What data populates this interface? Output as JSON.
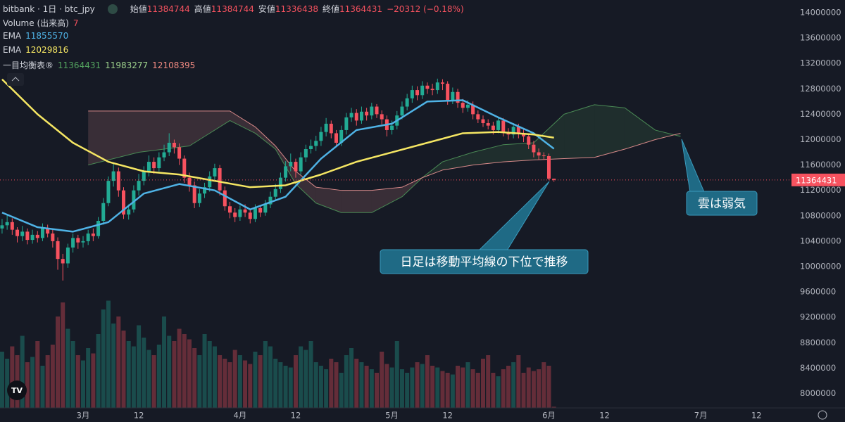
{
  "header": {
    "title": "bitbank · 1日 · btc_jpy",
    "open_label": "始値",
    "high_label": "高値",
    "low_label": "安値",
    "close_label": "終値",
    "change": "−20312 (−0.18%)"
  },
  "chart_data": {
    "type": "candlestick",
    "up_color": "#22ab94",
    "down_color": "#f7525f",
    "x": [
      13,
      14,
      15,
      16,
      17,
      18,
      19,
      20,
      21,
      22,
      23,
      24,
      25,
      26,
      27,
      28,
      29,
      30,
      31,
      32,
      33,
      34,
      35,
      36,
      37,
      38,
      39,
      40,
      41,
      42,
      43,
      44,
      45,
      46,
      47,
      48,
      49,
      50,
      51,
      52,
      53,
      54,
      55,
      56,
      57,
      58,
      59,
      60,
      61,
      62,
      63,
      64,
      65,
      66,
      67,
      68,
      69,
      70,
      71,
      72,
      73,
      74,
      75,
      76,
      77,
      78,
      79,
      80,
      81,
      82,
      83,
      84,
      85,
      86,
      87,
      88,
      89,
      90,
      91,
      92,
      93,
      94,
      95,
      96,
      97,
      98,
      99,
      100,
      101,
      102,
      103,
      104,
      105,
      106,
      107,
      108,
      109,
      110,
      111,
      112,
      113,
      114,
      115,
      116,
      117,
      118,
      119,
      120,
      121,
      122
    ],
    "ohlc": [
      [
        10600000,
        10750000,
        10520000,
        10650000
      ],
      [
        10650000,
        10820000,
        10580000,
        10700000
      ],
      [
        10700000,
        10760000,
        10500000,
        10580000
      ],
      [
        10580000,
        10620000,
        10380000,
        10480000
      ],
      [
        10480000,
        10640000,
        10400000,
        10550000
      ],
      [
        10550000,
        10600000,
        10350000,
        10420000
      ],
      [
        10420000,
        10580000,
        10360000,
        10500000
      ],
      [
        10500000,
        10560000,
        10380000,
        10450000
      ],
      [
        10450000,
        10680000,
        10400000,
        10600000
      ],
      [
        10600000,
        10660000,
        10460000,
        10520000
      ],
      [
        10520000,
        10580000,
        10300000,
        10400000
      ],
      [
        10400000,
        10460000,
        9950000,
        10120000
      ],
      [
        10120000,
        10200000,
        9780000,
        10050000
      ],
      [
        10050000,
        10360000,
        9980000,
        10300000
      ],
      [
        10300000,
        10520000,
        10220000,
        10450000
      ],
      [
        10450000,
        10500000,
        10280000,
        10380000
      ],
      [
        10380000,
        10480000,
        10300000,
        10400000
      ],
      [
        10400000,
        10580000,
        10340000,
        10520000
      ],
      [
        10520000,
        10600000,
        10400000,
        10480000
      ],
      [
        10480000,
        10780000,
        10440000,
        10720000
      ],
      [
        10720000,
        11080000,
        10660000,
        11000000
      ],
      [
        11000000,
        11420000,
        10950000,
        11350000
      ],
      [
        11350000,
        11620000,
        11260000,
        11500000
      ],
      [
        11500000,
        11560000,
        11100000,
        11200000
      ],
      [
        11200000,
        11250000,
        10750000,
        10820000
      ],
      [
        10820000,
        10980000,
        10740000,
        10900000
      ],
      [
        10900000,
        11280000,
        10850000,
        11200000
      ],
      [
        11200000,
        11460000,
        11120000,
        11350000
      ],
      [
        11350000,
        11580000,
        11280000,
        11500000
      ],
      [
        11500000,
        11750000,
        11420000,
        11650000
      ],
      [
        11650000,
        11720000,
        11460000,
        11550000
      ],
      [
        11550000,
        11800000,
        11500000,
        11720000
      ],
      [
        11720000,
        11920000,
        11660000,
        11800000
      ],
      [
        11800000,
        12100000,
        11740000,
        11950000
      ],
      [
        11950000,
        12000000,
        11780000,
        11880000
      ],
      [
        11880000,
        11940000,
        11600000,
        11700000
      ],
      [
        11700000,
        11750000,
        11320000,
        11400000
      ],
      [
        11400000,
        11480000,
        11180000,
        11280000
      ],
      [
        11280000,
        11340000,
        10920000,
        11000000
      ],
      [
        11000000,
        11220000,
        10940000,
        11150000
      ],
      [
        11150000,
        11320000,
        11080000,
        11250000
      ],
      [
        11250000,
        11500000,
        11180000,
        11420000
      ],
      [
        11420000,
        11620000,
        11360000,
        11550000
      ],
      [
        11550000,
        11600000,
        11120000,
        11200000
      ],
      [
        11200000,
        11260000,
        10880000,
        10950000
      ],
      [
        10950000,
        11020000,
        10760000,
        10850000
      ],
      [
        10850000,
        10920000,
        10700000,
        10780000
      ],
      [
        10780000,
        10960000,
        10720000,
        10900000
      ],
      [
        10900000,
        10980000,
        10780000,
        10850000
      ],
      [
        10850000,
        10900000,
        10680000,
        10750000
      ],
      [
        10750000,
        10980000,
        10700000,
        10920000
      ],
      [
        10920000,
        10960000,
        10780000,
        10850000
      ],
      [
        10850000,
        11050000,
        10800000,
        10980000
      ],
      [
        10980000,
        11180000,
        10920000,
        11100000
      ],
      [
        11100000,
        11300000,
        11040000,
        11220000
      ],
      [
        11220000,
        11480000,
        11160000,
        11400000
      ],
      [
        11400000,
        11660000,
        11340000,
        11580000
      ],
      [
        11580000,
        11780000,
        11500000,
        11650000
      ],
      [
        11650000,
        11700000,
        11400000,
        11500000
      ],
      [
        11500000,
        11800000,
        11450000,
        11720000
      ],
      [
        11720000,
        11920000,
        11650000,
        11850000
      ],
      [
        11850000,
        12000000,
        11780000,
        11900000
      ],
      [
        11900000,
        12060000,
        11820000,
        11980000
      ],
      [
        11980000,
        12200000,
        11900000,
        12120000
      ],
      [
        12120000,
        12340000,
        12050000,
        12250000
      ],
      [
        12250000,
        12300000,
        12020000,
        12100000
      ],
      [
        12100000,
        12150000,
        11880000,
        11950000
      ],
      [
        11950000,
        12220000,
        11900000,
        12150000
      ],
      [
        12150000,
        12420000,
        12080000,
        12350000
      ],
      [
        12350000,
        12500000,
        12280000,
        12420000
      ],
      [
        12420000,
        12480000,
        12220000,
        12300000
      ],
      [
        12300000,
        12520000,
        12250000,
        12440000
      ],
      [
        12440000,
        12500000,
        12300000,
        12380000
      ],
      [
        12380000,
        12580000,
        12320000,
        12520000
      ],
      [
        12520000,
        12560000,
        12340000,
        12400000
      ],
      [
        12400000,
        12460000,
        12240000,
        12320000
      ],
      [
        12320000,
        12380000,
        12050000,
        12150000
      ],
      [
        12150000,
        12300000,
        12080000,
        12220000
      ],
      [
        12220000,
        12450000,
        12160000,
        12380000
      ],
      [
        12380000,
        12600000,
        12320000,
        12520000
      ],
      [
        12520000,
        12720000,
        12460000,
        12650000
      ],
      [
        12650000,
        12850000,
        12580000,
        12780000
      ],
      [
        12780000,
        12840000,
        12620000,
        12700000
      ],
      [
        12700000,
        12920000,
        12640000,
        12850000
      ],
      [
        12850000,
        12900000,
        12720000,
        12800000
      ],
      [
        12800000,
        12880000,
        12700000,
        12780000
      ],
      [
        12780000,
        12960000,
        12720000,
        12900000
      ],
      [
        12900000,
        12950000,
        12780000,
        12880000
      ],
      [
        12880000,
        12920000,
        12550000,
        12620000
      ],
      [
        12620000,
        12820000,
        12560000,
        12750000
      ],
      [
        12750000,
        12800000,
        12500000,
        12580000
      ],
      [
        12580000,
        12640000,
        12420000,
        12500000
      ],
      [
        12500000,
        12620000,
        12440000,
        12550000
      ],
      [
        12550000,
        12600000,
        12320000,
        12400000
      ],
      [
        12400000,
        12460000,
        12260000,
        12320000
      ],
      [
        12320000,
        12380000,
        12200000,
        12260000
      ],
      [
        12260000,
        12320000,
        12160000,
        12220000
      ],
      [
        12220000,
        12280000,
        12080000,
        12150000
      ],
      [
        12150000,
        12360000,
        12100000,
        12300000
      ],
      [
        12300000,
        12340000,
        12050000,
        12120000
      ],
      [
        12120000,
        12180000,
        12000000,
        12080000
      ],
      [
        12080000,
        12260000,
        12020000,
        12200000
      ],
      [
        12200000,
        12250000,
        12020000,
        12100000
      ],
      [
        12100000,
        12160000,
        11960000,
        12050000
      ],
      [
        12050000,
        12100000,
        11850000,
        11920000
      ],
      [
        11920000,
        11980000,
        11720000,
        11800000
      ],
      [
        11800000,
        11860000,
        11680000,
        11750000
      ],
      [
        11750000,
        11800000,
        11680000,
        11740000
      ],
      [
        11740000,
        11780000,
        11360000,
        11384744
      ],
      [
        11384744,
        11384744,
        11336438,
        11364431
      ]
    ],
    "volume": {
      "name": "Volume (出来高)",
      "ylim": [
        0,
        800
      ],
      "values": [
        320,
        280,
        350,
        300,
        410,
        260,
        290,
        380,
        240,
        300,
        360,
        520,
        600,
        450,
        380,
        300,
        270,
        340,
        310,
        420,
        560,
        610,
        480,
        520,
        440,
        380,
        350,
        470,
        400,
        330,
        300,
        360,
        520,
        410,
        380,
        450,
        420,
        390,
        340,
        300,
        420,
        380,
        350,
        300,
        280,
        260,
        330,
        300,
        270,
        250,
        320,
        300,
        380,
        350,
        280,
        260,
        240,
        230,
        300,
        350,
        330,
        380,
        260,
        240,
        220,
        280,
        260,
        200,
        300,
        340,
        280,
        260,
        240,
        220,
        200,
        320,
        250,
        230,
        380,
        220,
        200,
        230,
        260,
        250,
        300,
        240,
        230,
        210,
        200,
        190,
        240,
        230,
        260,
        220,
        200,
        280,
        300,
        200,
        180,
        220,
        240,
        260,
        300,
        200,
        230,
        210,
        220,
        260,
        240,
        7
      ]
    },
    "series": [
      {
        "name": "EMA",
        "color": "#4fb3e6",
        "x": [
          13,
          20,
          27,
          34,
          41,
          48,
          55,
          62,
          69,
          76,
          83,
          90,
          97,
          104,
          111,
          118,
          122
        ],
        "values": [
          10850000,
          10620000,
          10550000,
          10700000,
          11150000,
          11300000,
          11200000,
          10900000,
          11100000,
          11700000,
          12150000,
          12250000,
          12600000,
          12620000,
          12350000,
          12100000,
          11855570
        ]
      },
      {
        "name": "EMA",
        "color": "#f5e663",
        "x": [
          13,
          20,
          27,
          34,
          41,
          48,
          55,
          62,
          69,
          76,
          83,
          90,
          97,
          104,
          111,
          118,
          122
        ],
        "values": [
          12950000,
          12400000,
          11950000,
          11650000,
          11500000,
          11450000,
          11350000,
          11250000,
          11280000,
          11450000,
          11650000,
          11800000,
          11950000,
          12100000,
          12120000,
          12080000,
          12029816
        ]
      }
    ],
    "ichimoku": {
      "name": "一目均衡表®",
      "readout": [
        11364431,
        11983277,
        12108395
      ],
      "readout_colors": [
        "#53a35f",
        "#9ed28c",
        "#f28b82"
      ],
      "x": [
        30,
        40,
        50,
        58,
        63,
        67,
        71,
        75,
        80,
        86,
        92,
        96,
        100,
        106,
        112,
        118,
        124,
        130,
        136,
        142,
        147
      ],
      "span_a": {
        "color": "#4a8a55",
        "values": [
          11600000,
          11800000,
          11900000,
          12300000,
          12100000,
          11850000,
          11300000,
          11000000,
          10850000,
          10850000,
          11100000,
          11400000,
          11650000,
          11800000,
          11920000,
          11950000,
          12400000,
          12550000,
          12500000,
          12150000,
          12050000
        ]
      },
      "span_b": {
        "color": "#d98a8a",
        "values": [
          12450000,
          12450000,
          12450000,
          12450000,
          12200000,
          11900000,
          11500000,
          11250000,
          11200000,
          11200000,
          11250000,
          11400000,
          11520000,
          11600000,
          11650000,
          11680000,
          11700000,
          11720000,
          11850000,
          12000000,
          12100000
        ]
      }
    },
    "xlim": [
      12.59,
      168.36
    ],
    "xticks": [
      {
        "value": 11,
        "label": "12"
      },
      {
        "value": 29,
        "label": "3月"
      },
      {
        "value": 40,
        "label": "12"
      },
      {
        "value": 60,
        "label": "4月"
      },
      {
        "value": 71,
        "label": "12"
      },
      {
        "value": 90,
        "label": "5月"
      },
      {
        "value": 101,
        "label": "12"
      },
      {
        "value": 121,
        "label": "6月"
      },
      {
        "value": 132,
        "label": "12"
      },
      {
        "value": 151,
        "label": "7月"
      },
      {
        "value": 162,
        "label": "12"
      }
    ],
    "ylim": [
      7773000,
      14199000
    ],
    "yticks": [
      8000000,
      8400000,
      8800000,
      9200000,
      9600000,
      10000000,
      10400000,
      10800000,
      11200000,
      11600000,
      12000000,
      12400000,
      12800000,
      13200000,
      13600000,
      14000000
    ],
    "last_price_line": true,
    "annotations": [
      "日足は移動平均線の下位で推移",
      "雲は弱気"
    ]
  }
}
